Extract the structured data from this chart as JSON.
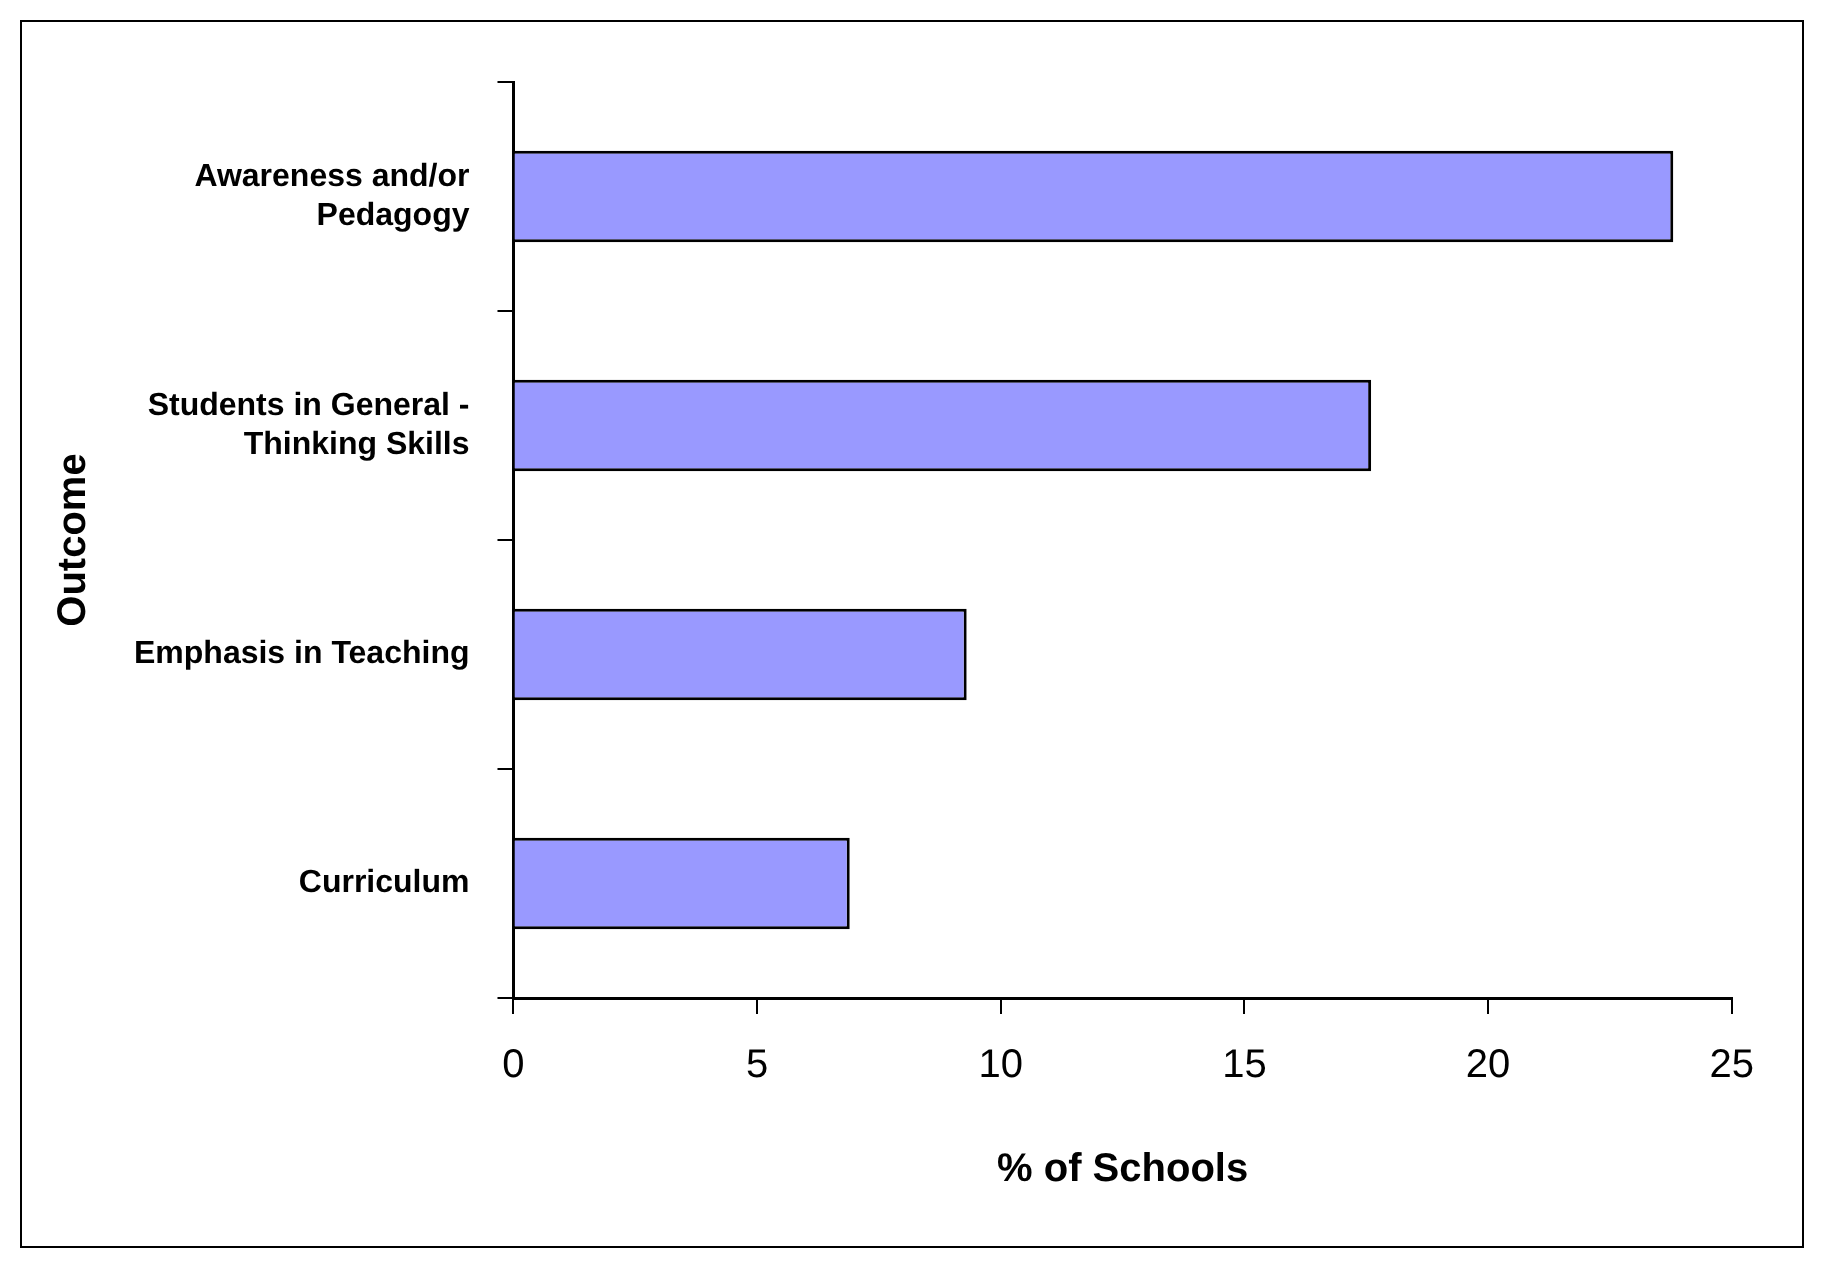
{
  "chart_data": {
    "type": "bar",
    "orientation": "horizontal",
    "xlabel": "% of Schools",
    "ylabel": "Outcome",
    "categories": [
      "Awareness and/or Pedagogy",
      "Students in General - Thinking Skills",
      "Emphasis in Teaching",
      "Curriculum"
    ],
    "values": [
      23.8,
      17.6,
      9.3,
      6.9
    ],
    "color": "#9999ff",
    "xlim": [
      0,
      25
    ],
    "xticks": [
      0,
      5,
      10,
      15,
      20,
      25
    ],
    "grid": false,
    "legend": false
  }
}
